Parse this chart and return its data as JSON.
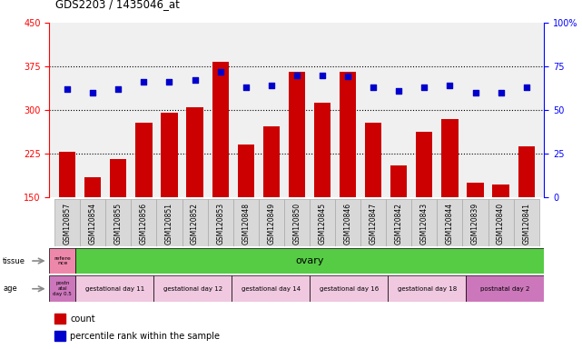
{
  "title": "GDS2203 / 1435046_at",
  "samples": [
    "GSM120857",
    "GSM120854",
    "GSM120855",
    "GSM120856",
    "GSM120851",
    "GSM120852",
    "GSM120853",
    "GSM120848",
    "GSM120849",
    "GSM120850",
    "GSM120845",
    "GSM120846",
    "GSM120847",
    "GSM120842",
    "GSM120843",
    "GSM120844",
    "GSM120839",
    "GSM120840",
    "GSM120841"
  ],
  "counts": [
    228,
    185,
    215,
    278,
    295,
    305,
    382,
    240,
    272,
    365,
    312,
    365,
    278,
    205,
    262,
    285,
    175,
    172,
    238
  ],
  "percentiles": [
    62,
    60,
    62,
    66,
    66,
    67,
    72,
    63,
    64,
    70,
    70,
    69,
    63,
    61,
    63,
    64,
    60,
    60,
    63
  ],
  "ylim_left": [
    150,
    450
  ],
  "ylim_right": [
    0,
    100
  ],
  "yticks_left": [
    150,
    225,
    300,
    375,
    450
  ],
  "yticks_right": [
    0,
    25,
    50,
    75,
    100
  ],
  "bar_color": "#cc0000",
  "dot_color": "#0000cc",
  "chart_bg": "#f0f0f0",
  "xtick_bg": "#d8d8d8",
  "tissue_first_color": "#ee88aa",
  "tissue_main_color": "#55cc44",
  "age_first_color": "#cc77bb",
  "age_group_color": "#f0c8e0",
  "age_last_color": "#cc77bb",
  "tissue_first_text": "refere\nnce",
  "tissue_main_text": "ovary",
  "age_first_text": "postn\natal\nday 0.5",
  "age_groups": [
    {
      "text": "gestational day 11",
      "span": 3
    },
    {
      "text": "gestational day 12",
      "span": 3
    },
    {
      "text": "gestational day 14",
      "span": 3
    },
    {
      "text": "gestational day 16",
      "span": 3
    },
    {
      "text": "gestational day 18",
      "span": 3
    },
    {
      "text": "postnatal day 2",
      "span": 3
    }
  ],
  "legend": [
    {
      "label": "count",
      "color": "#cc0000"
    },
    {
      "label": "percentile rank within the sample",
      "color": "#0000cc"
    }
  ]
}
